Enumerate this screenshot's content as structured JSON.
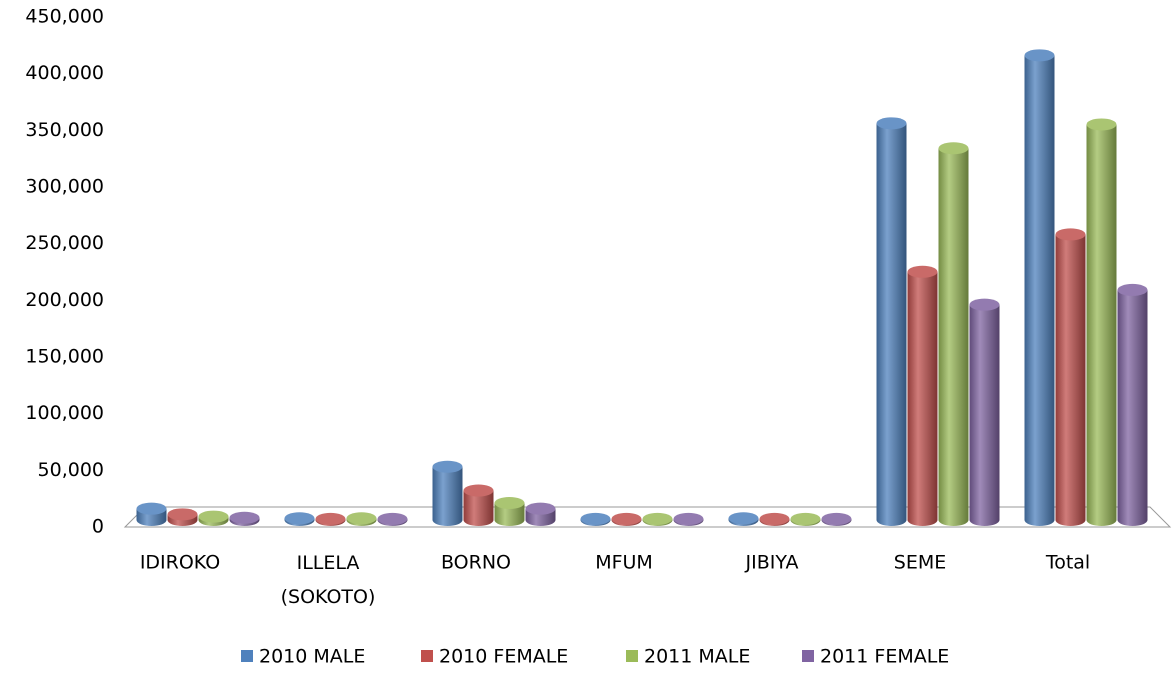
{
  "chart_data": {
    "type": "bar",
    "categories": [
      "IDIROKO",
      "ILLELA (SOKOTO)",
      "BORNO",
      "MFUM",
      "JIBIYA",
      "SEME",
      "Total"
    ],
    "series": [
      {
        "name": "2010 MALE",
        "color": "#4f81bd",
        "values": [
          10000,
          1500,
          47000,
          1000,
          1500,
          350000,
          410000
        ]
      },
      {
        "name": "2010 FEMALE",
        "color": "#c0504d",
        "values": [
          5000,
          1000,
          26000,
          1000,
          1000,
          219000,
          252000
        ]
      },
      {
        "name": "2011 MALE",
        "color": "#9bbb59",
        "values": [
          3000,
          1500,
          15000,
          1000,
          1000,
          328000,
          349000
        ]
      },
      {
        "name": "2011 FEMALE",
        "color": "#8064a2",
        "values": [
          2000,
          1000,
          10000,
          1000,
          1000,
          190000,
          203000
        ]
      }
    ],
    "ylim": [
      0,
      450000
    ],
    "yticks": [
      0,
      {
        "value": 50000,
        "label": "50,000"
      },
      {
        "value": 100000,
        "label": "100,000"
      },
      {
        "value": 150000,
        "label": "150,000"
      },
      {
        "value": 200000,
        "label": "200,000"
      },
      {
        "value": 250000,
        "label": "250,000"
      },
      {
        "value": 300000,
        "label": "300,000"
      },
      {
        "value": 350000,
        "label": "350,000"
      },
      {
        "value": 400000,
        "label": "400,000"
      },
      {
        "value": 450000,
        "label": "450,000"
      }
    ],
    "legend": "bottom"
  }
}
